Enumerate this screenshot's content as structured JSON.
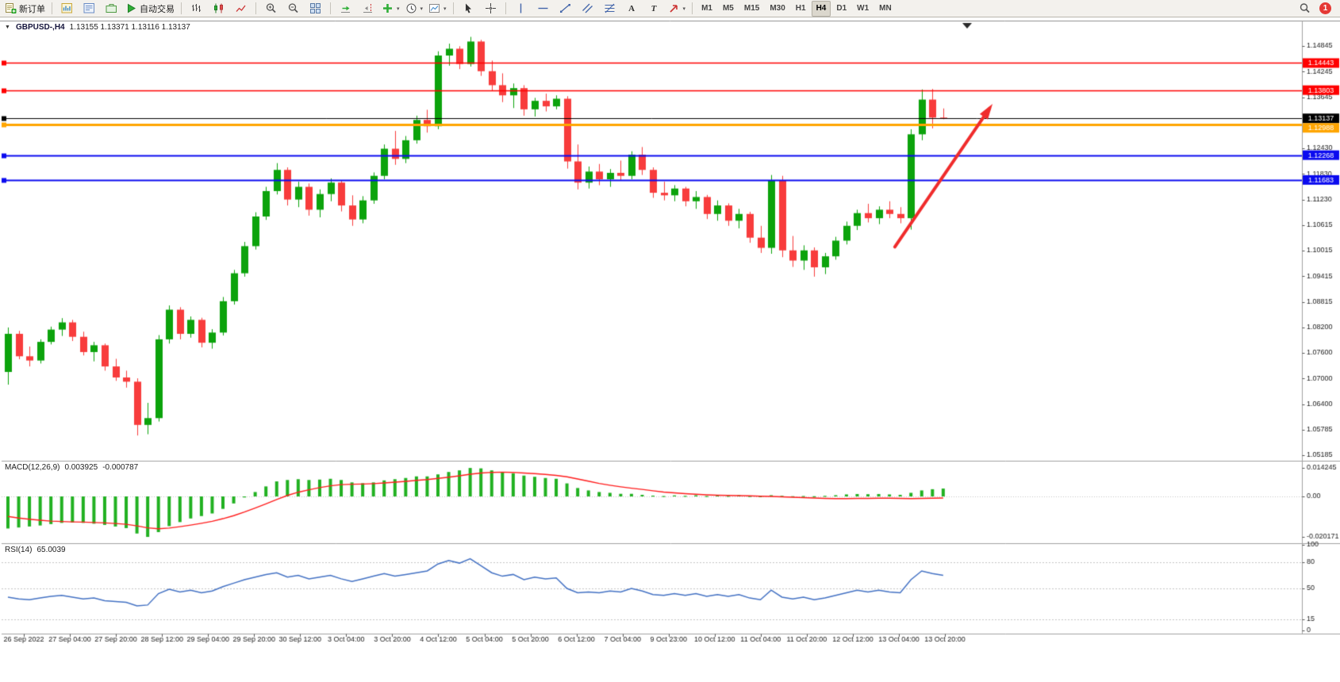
{
  "toolbar": {
    "new_order_label": "新订单",
    "algo_trading_label": "自动交易",
    "timeframes": [
      "M1",
      "M5",
      "M15",
      "M30",
      "H1",
      "H4",
      "D1",
      "W1",
      "MN"
    ],
    "active_timeframe": "H4",
    "notification_count": "1"
  },
  "chart": {
    "collapse_icon": "▼",
    "title_symbol": "GBPUSD-,H4",
    "title_ohlc": "1.13155 1.13371 1.13116 1.13137",
    "price_axis_labels": [
      "1.14845",
      "1.14245",
      "1.13645",
      "",
      "1.12430",
      "1.11830",
      "1.11230",
      "1.10615",
      "1.10015",
      "1.09415",
      "1.08815",
      "1.08200",
      "1.07600",
      "1.07000",
      "1.06400",
      "1.05785",
      "1.05185"
    ],
    "hlines": [
      {
        "label": "1.14443",
        "price": 1.14443,
        "color": "#ff0000",
        "width": 1.4
      },
      {
        "label": "1.13803",
        "price": 1.13803,
        "color": "#ff0000",
        "width": 1.4
      },
      {
        "label": "1.13137",
        "price": 1.13137,
        "color": "#000000",
        "width": 1
      },
      {
        "label": "1.12988",
        "price": 1.12988,
        "color": "#ffa500",
        "width": 3
      },
      {
        "label": "1.12268",
        "price": 1.12268,
        "color": "#0b0bef",
        "width": 2
      },
      {
        "label": "1.11683",
        "price": 1.11683,
        "color": "#0b0bef",
        "width": 2
      }
    ],
    "arrow": {
      "from_bar": 82.5,
      "from_price": 1.101,
      "to_bar": 91.3,
      "to_price": 1.1337
    }
  },
  "macd_panel": {
    "label": "MACD(12,26,9)",
    "value_main": "0.003925",
    "value_signal": "-0.000787",
    "axis_labels": [
      "0.014245",
      "0.00",
      "-0.020171"
    ],
    "levels": [
      0
    ]
  },
  "rsi_panel": {
    "label": "RSI(14)",
    "value": "65.0039",
    "axis_labels": [
      "100",
      "80",
      "50",
      "15",
      "0"
    ],
    "levels": [
      80,
      50,
      15
    ]
  },
  "colors": {
    "up": "#0ca30c",
    "down": "#f83c3c",
    "macd_hist": "#21b121",
    "macd_signal": "#ff1e1e",
    "rsi": "#4472c4",
    "arrow": "#f02c2c"
  },
  "chart_data": {
    "type": "candlestick",
    "symbol": "GBPUSD",
    "timeframe": "H4",
    "price_range": [
      1.05185,
      1.14845
    ],
    "candles": [
      [
        1.0715,
        1.082,
        1.0685,
        1.0805
      ],
      [
        1.0805,
        1.0812,
        1.0745,
        1.0752
      ],
      [
        1.0752,
        1.0775,
        1.0728,
        1.0742
      ],
      [
        1.0742,
        1.0792,
        1.0735,
        1.0786
      ],
      [
        1.0786,
        1.0822,
        1.078,
        1.0815
      ],
      [
        1.0815,
        1.0842,
        1.08,
        1.0832
      ],
      [
        1.0832,
        1.0838,
        1.0788,
        1.0798
      ],
      [
        1.0798,
        1.081,
        1.0754,
        1.0762
      ],
      [
        1.0762,
        1.0786,
        1.074,
        1.0778
      ],
      [
        1.0778,
        1.0782,
        1.0718,
        1.0728
      ],
      [
        1.0728,
        1.0746,
        1.0694,
        1.0702
      ],
      [
        1.0702,
        1.0718,
        1.0678,
        1.0692
      ],
      [
        1.0692,
        1.07,
        1.0565,
        1.059
      ],
      [
        1.059,
        1.0642,
        1.0568,
        1.0606
      ],
      [
        1.0606,
        1.0802,
        1.0598,
        1.0792
      ],
      [
        1.0792,
        1.0872,
        1.0782,
        1.0862
      ],
      [
        1.0862,
        1.0868,
        1.0792,
        1.0805
      ],
      [
        1.0805,
        1.0846,
        1.0796,
        1.0838
      ],
      [
        1.0838,
        1.0843,
        1.0773,
        1.0784
      ],
      [
        1.0784,
        1.0816,
        1.077,
        1.0808
      ],
      [
        1.0808,
        1.0892,
        1.0801,
        1.0882
      ],
      [
        1.0882,
        1.0956,
        1.0874,
        1.0948
      ],
      [
        1.0948,
        1.1022,
        1.094,
        1.1012
      ],
      [
        1.1012,
        1.1092,
        1.1004,
        1.1082
      ],
      [
        1.1082,
        1.1152,
        1.1074,
        1.1142
      ],
      [
        1.1142,
        1.1208,
        1.1134,
        1.1192
      ],
      [
        1.1192,
        1.1198,
        1.1108,
        1.1122
      ],
      [
        1.1122,
        1.1164,
        1.1104,
        1.1152
      ],
      [
        1.1152,
        1.116,
        1.1084,
        1.1098
      ],
      [
        1.1098,
        1.1146,
        1.108,
        1.1135
      ],
      [
        1.1135,
        1.1172,
        1.1118,
        1.1162
      ],
      [
        1.1162,
        1.1168,
        1.1094,
        1.1108
      ],
      [
        1.1108,
        1.1132,
        1.106,
        1.1075
      ],
      [
        1.1075,
        1.113,
        1.1066,
        1.112
      ],
      [
        1.112,
        1.1186,
        1.1112,
        1.1178
      ],
      [
        1.1178,
        1.1252,
        1.117,
        1.1242
      ],
      [
        1.1242,
        1.1284,
        1.1204,
        1.1218
      ],
      [
        1.1218,
        1.1272,
        1.1208,
        1.1262
      ],
      [
        1.1262,
        1.132,
        1.1254,
        1.131
      ],
      [
        1.131,
        1.1334,
        1.128,
        1.1295
      ],
      [
        1.1295,
        1.1472,
        1.1288,
        1.1462
      ],
      [
        1.1462,
        1.149,
        1.1438,
        1.1478
      ],
      [
        1.1478,
        1.1484,
        1.143,
        1.1442
      ],
      [
        1.1442,
        1.1506,
        1.1436,
        1.1495
      ],
      [
        1.1495,
        1.1499,
        1.1414,
        1.1425
      ],
      [
        1.1425,
        1.145,
        1.1378,
        1.1392
      ],
      [
        1.1392,
        1.142,
        1.1352,
        1.1368
      ],
      [
        1.1368,
        1.1396,
        1.1338,
        1.1385
      ],
      [
        1.1385,
        1.1392,
        1.132,
        1.1335
      ],
      [
        1.1335,
        1.1362,
        1.1318,
        1.1355
      ],
      [
        1.1355,
        1.1372,
        1.133,
        1.1342
      ],
      [
        1.1342,
        1.1368,
        1.1335,
        1.136
      ],
      [
        1.136,
        1.1366,
        1.1195,
        1.1212
      ],
      [
        1.1212,
        1.1252,
        1.1146,
        1.1162
      ],
      [
        1.1162,
        1.12,
        1.1148,
        1.1188
      ],
      [
        1.1188,
        1.1206,
        1.1156,
        1.117
      ],
      [
        1.117,
        1.1194,
        1.1152,
        1.1185
      ],
      [
        1.1185,
        1.1214,
        1.1168,
        1.1178
      ],
      [
        1.1178,
        1.1236,
        1.117,
        1.1228
      ],
      [
        1.1228,
        1.1246,
        1.118,
        1.1192
      ],
      [
        1.1192,
        1.1198,
        1.1126,
        1.1138
      ],
      [
        1.1138,
        1.1164,
        1.112,
        1.1132
      ],
      [
        1.1132,
        1.1156,
        1.1118,
        1.1148
      ],
      [
        1.1148,
        1.1152,
        1.1106,
        1.1118
      ],
      [
        1.1118,
        1.1142,
        1.11,
        1.1128
      ],
      [
        1.1128,
        1.1133,
        1.1076,
        1.1088
      ],
      [
        1.1088,
        1.112,
        1.1072,
        1.1108
      ],
      [
        1.1108,
        1.1113,
        1.106,
        1.1072
      ],
      [
        1.1072,
        1.11,
        1.1054,
        1.1088
      ],
      [
        1.1088,
        1.1093,
        1.102,
        1.1032
      ],
      [
        1.1032,
        1.106,
        1.0996,
        1.1008
      ],
      [
        1.1008,
        1.118,
        1.0994,
        1.1168
      ],
      [
        1.1168,
        1.1178,
        1.0986,
        1.1002
      ],
      [
        1.1002,
        1.1036,
        1.0963,
        1.0978
      ],
      [
        1.0978,
        1.1014,
        1.0956,
        1.1002
      ],
      [
        1.1002,
        1.1009,
        1.094,
        1.0962
      ],
      [
        1.0962,
        1.0996,
        1.0946,
        1.0988
      ],
      [
        1.0988,
        1.1034,
        1.098,
        1.1025
      ],
      [
        1.1025,
        1.107,
        1.1016,
        1.106
      ],
      [
        1.106,
        1.1098,
        1.105,
        1.109
      ],
      [
        1.109,
        1.1112,
        1.1068,
        1.1078
      ],
      [
        1.1078,
        1.1106,
        1.1064,
        1.1098
      ],
      [
        1.1098,
        1.1118,
        1.1078,
        1.1088
      ],
      [
        1.1088,
        1.1104,
        1.1066,
        1.1078
      ],
      [
        1.1078,
        1.1288,
        1.1051,
        1.1276
      ],
      [
        1.1276,
        1.1382,
        1.1262,
        1.1358
      ],
      [
        1.1358,
        1.1383,
        1.129,
        1.13155
      ],
      [
        1.13155,
        1.13371,
        1.13116,
        1.13137
      ]
    ],
    "macd": {
      "histogram": [
        -0.016,
        -0.0155,
        -0.015,
        -0.0145,
        -0.0138,
        -0.0132,
        -0.013,
        -0.0132,
        -0.0136,
        -0.0142,
        -0.015,
        -0.0158,
        -0.0185,
        -0.0202,
        -0.0178,
        -0.0148,
        -0.0128,
        -0.011,
        -0.0098,
        -0.0085,
        -0.0062,
        -0.0035,
        -0.0005,
        0.0022,
        0.005,
        0.0075,
        0.0082,
        0.0086,
        0.0082,
        0.0084,
        0.0088,
        0.0082,
        0.007,
        0.0066,
        0.007,
        0.008,
        0.0086,
        0.0092,
        0.01,
        0.01,
        0.011,
        0.0122,
        0.013,
        0.0142,
        0.014,
        0.013,
        0.0122,
        0.0115,
        0.0104,
        0.0098,
        0.0092,
        0.0088,
        0.0065,
        0.0042,
        0.003,
        0.0022,
        0.0018,
        0.0013,
        0.0013,
        0.0008,
        0.0004,
        0.0002,
        0.0005,
        0.0003,
        0.0006,
        0.0002,
        0.0005,
        0.0003,
        0.0006,
        0.0002,
        0.0001,
        0.0006,
        0.0003,
        0.0001,
        0.0002,
        0.0001,
        0.0003,
        0.0006,
        0.001,
        0.0012,
        0.0011,
        0.0012,
        0.001,
        0.0008,
        0.0018,
        0.003,
        0.0036,
        0.003925
      ],
      "signal": [
        -0.01,
        -0.0108,
        -0.0114,
        -0.0119,
        -0.0123,
        -0.0125,
        -0.0127,
        -0.0128,
        -0.013,
        -0.0132,
        -0.0135,
        -0.0139,
        -0.0147,
        -0.0157,
        -0.0161,
        -0.0158,
        -0.0151,
        -0.0143,
        -0.0134,
        -0.0124,
        -0.0111,
        -0.0096,
        -0.0078,
        -0.0058,
        -0.0037,
        -0.0015,
        0.0005,
        0.0021,
        0.0033,
        0.0044,
        0.0053,
        0.0059,
        0.0061,
        0.0062,
        0.0064,
        0.0067,
        0.0071,
        0.0075,
        0.008,
        0.0084,
        0.009,
        0.0096,
        0.0103,
        0.0111,
        0.0117,
        0.012,
        0.0121,
        0.012,
        0.0117,
        0.0114,
        0.011,
        0.0105,
        0.0098,
        0.0087,
        0.0076,
        0.0065,
        0.0056,
        0.0048,
        0.0041,
        0.0035,
        0.0028,
        0.0022,
        0.0018,
        0.0014,
        0.0011,
        0.0008,
        0.0006,
        0.0005,
        0.0004,
        0.0003,
        0.0001,
        0.0,
        -0.0002,
        -0.0004,
        -0.0006,
        -0.0008,
        -0.001,
        -0.0011,
        -0.0011,
        -0.001,
        -0.001,
        -0.0009,
        -0.0009,
        -0.001,
        -0.0011,
        -0.001,
        -0.0009,
        -0.000787
      ]
    },
    "rsi": [
      40,
      38,
      37,
      39,
      41,
      42,
      40,
      38,
      39,
      36,
      35,
      34,
      30,
      31,
      44,
      49,
      46,
      48,
      45,
      47,
      52,
      56,
      60,
      63,
      66,
      68,
      63,
      65,
      61,
      63,
      65,
      61,
      58,
      61,
      64,
      67,
      64,
      66,
      68,
      70,
      78,
      82,
      79,
      84,
      76,
      68,
      64,
      66,
      60,
      63,
      61,
      62,
      50,
      45,
      46,
      45,
      47,
      46,
      50,
      47,
      43,
      42,
      44,
      42,
      44,
      41,
      43,
      41,
      43,
      39,
      37,
      48,
      40,
      38,
      40,
      37,
      39,
      42,
      45,
      48,
      46,
      48,
      46,
      45,
      60,
      70,
      67,
      65
    ],
    "time_labels": [
      "26 Sep 2022",
      "27 Sep 04:00",
      "27 Sep 20:00",
      "28 Sep 12:00",
      "29 Sep 04:00",
      "29 Sep 20:00",
      "30 Sep 12:00",
      "3 Oct 04:00",
      "3 Oct 20:00",
      "4 Oct 12:00",
      "5 Oct 04:00",
      "5 Oct 20:00",
      "6 Oct 12:00",
      "7 Oct 04:00",
      "9 Oct 23:00",
      "10 Oct 12:00",
      "11 Oct 04:00",
      "11 Oct 20:00",
      "12 Oct 12:00",
      "13 Oct 04:00",
      "13 Oct 20:00"
    ]
  }
}
